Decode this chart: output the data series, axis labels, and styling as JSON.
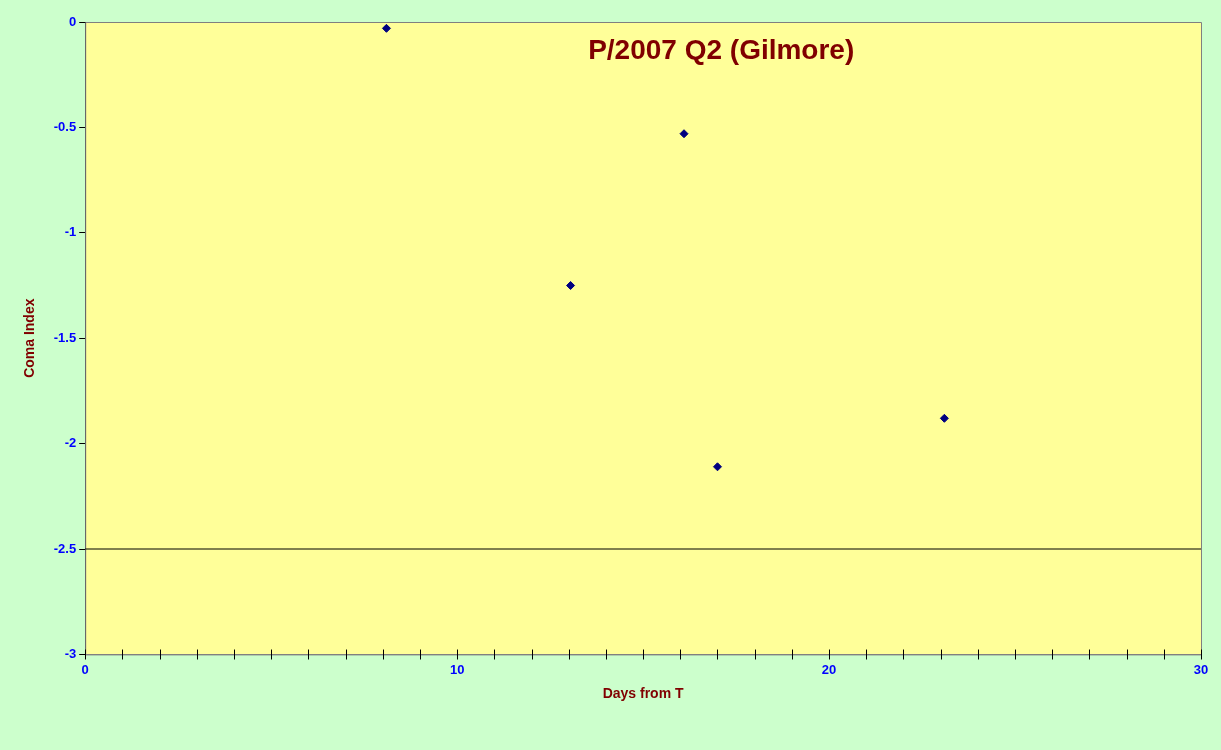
{
  "chart_data": {
    "type": "scatter",
    "title": "P/2007 Q2 (Gilmore)",
    "xlabel": "Days from T",
    "ylabel": "Coma Index",
    "series": [
      {
        "color": "#000080",
        "x": [
          8.1,
          13.05,
          16.1,
          17,
          23.1
        ],
        "values": [
          -0.03,
          -1.25,
          -0.53,
          -2.11,
          -1.88
        ]
      }
    ],
    "xlim": [
      0,
      30
    ],
    "xticks": [
      0,
      {
        "value": 1,
        "label": null
      },
      {
        "value": 2,
        "label": null
      },
      {
        "value": 3,
        "label": null
      },
      {
        "value": 4,
        "label": null
      },
      {
        "value": 5,
        "label": null
      },
      {
        "value": 6,
        "label": null
      },
      {
        "value": 7,
        "label": null
      },
      {
        "value": 8,
        "label": null
      },
      {
        "value": 9,
        "label": null
      },
      10,
      {
        "value": 11,
        "label": null
      },
      {
        "value": 12,
        "label": null
      },
      {
        "value": 13,
        "label": null
      },
      {
        "value": 14,
        "label": null
      },
      {
        "value": 15,
        "label": null
      },
      {
        "value": 16,
        "label": null
      },
      {
        "value": 17,
        "label": null
      },
      {
        "value": 18,
        "label": null
      },
      {
        "value": 19,
        "label": null
      },
      20,
      {
        "value": 21,
        "label": null
      },
      {
        "value": 22,
        "label": null
      },
      {
        "value": 23,
        "label": null
      },
      {
        "value": 24,
        "label": null
      },
      {
        "value": 25,
        "label": null
      },
      {
        "value": 26,
        "label": null
      },
      {
        "value": 27,
        "label": null
      },
      {
        "value": 28,
        "label": null
      },
      {
        "value": 29,
        "label": null
      },
      30
    ],
    "ylim": [
      -3,
      0
    ],
    "yticks": [
      -3,
      -2.5,
      -2,
      -1.5,
      -1,
      -0.5,
      0
    ],
    "ref_lines": [
      {
        "axis": "y",
        "value": -2.5,
        "color": "#000000"
      }
    ],
    "grid": false,
    "legend": false,
    "marker": "diamond"
  }
}
